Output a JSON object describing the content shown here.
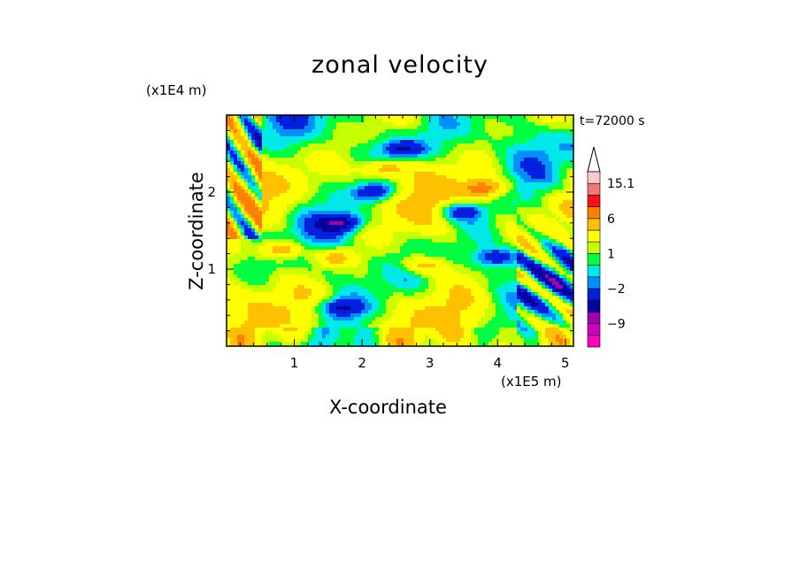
{
  "chart_data": {
    "type": "heatmap",
    "title": "zonal velocity",
    "xlabel": "X-coordinate",
    "ylabel": "Z-coordinate",
    "x_unit": "(x1E5 m)",
    "y_unit": "(x1E4 m)",
    "time_label": "t=72000 s",
    "xlim": [
      0,
      5.12
    ],
    "ylim": [
      0,
      3.0
    ],
    "x_ticks": [
      1,
      2,
      3,
      4,
      5
    ],
    "y_ticks": [
      1,
      2
    ],
    "colorbar": {
      "labels": [
        "15.1",
        "6",
        "1",
        "−2",
        "−9"
      ],
      "levels": [
        -15,
        -12,
        -9,
        -6,
        -4,
        -2,
        -1,
        0,
        1,
        2,
        4,
        6,
        9,
        12,
        15.1
      ],
      "colors": [
        "#ff00c0",
        "#d000c0",
        "#a000b0",
        "#0a00a0",
        "#0020e0",
        "#0090ff",
        "#00e8e8",
        "#00ff40",
        "#c8ff00",
        "#ffff00",
        "#ffc000",
        "#ff8000",
        "#ff1010",
        "#f07878",
        "#ffc8c8"
      ]
    },
    "field_features": [
      {
        "x": 1.65,
        "z": 0.5,
        "value": -5
      },
      {
        "x": 2.6,
        "z": 2.55,
        "value": -5
      },
      {
        "x": 2.2,
        "z": 2.0,
        "value": -5
      },
      {
        "x": 3.45,
        "z": 1.75,
        "value": -5
      },
      {
        "x": 1.7,
        "z": 1.6,
        "value": -6
      },
      {
        "x": 4.0,
        "z": 1.15,
        "value": -5
      },
      {
        "x": 0.8,
        "z": 1.25,
        "value": 6
      },
      {
        "x": 1.6,
        "z": 1.15,
        "value": 4.5
      },
      {
        "x": 2.9,
        "z": 1.05,
        "value": 4.5
      },
      {
        "x": 3.8,
        "z": 2.05,
        "value": 6
      },
      {
        "x": 2.3,
        "z": 2.3,
        "value": 5
      }
    ]
  }
}
